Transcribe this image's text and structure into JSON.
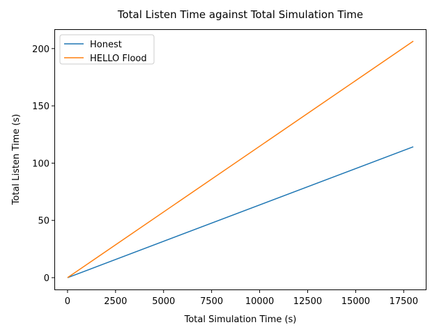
{
  "chart_data": {
    "type": "line",
    "title": "Total Listen Time against Total Simulation Time",
    "xlabel": "Total Simulation Time (s)",
    "ylabel": "Total Listen Time (s)",
    "xlim": [
      -650,
      18650
    ],
    "ylim": [
      -10.3,
      216.3
    ],
    "xticks": [
      0,
      2500,
      5000,
      7500,
      10000,
      12500,
      15000,
      17500
    ],
    "xtick_labels": [
      "0",
      "2500",
      "5000",
      "7500",
      "10000",
      "12500",
      "15000",
      "17500"
    ],
    "yticks": [
      0,
      50,
      100,
      150,
      200
    ],
    "ytick_labels": [
      "0",
      "50",
      "100",
      "150",
      "200"
    ],
    "grid": false,
    "legend_position": "top-left",
    "series": [
      {
        "name": "Honest",
        "color": "#1f77b4",
        "x": [
          0,
          18000
        ],
        "y": [
          0,
          114.3
        ]
      },
      {
        "name": "HELLO Flood",
        "color": "#ff7f0e",
        "x": [
          0,
          18000
        ],
        "y": [
          0,
          206.5
        ]
      }
    ]
  }
}
